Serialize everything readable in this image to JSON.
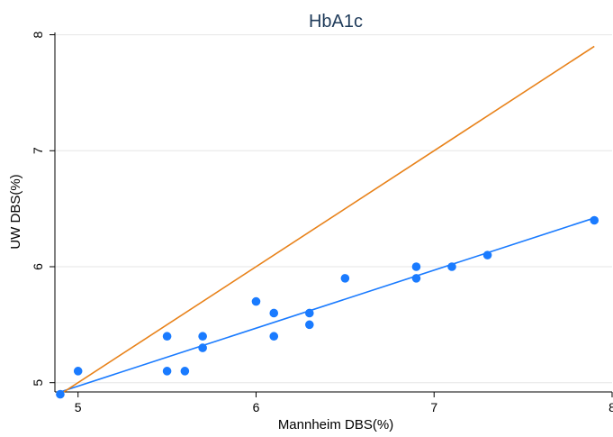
{
  "chart_data": {
    "type": "scatter",
    "title": "HbA1c",
    "xlabel": "Mannheim DBS(%)",
    "ylabel": "UW DBS(%)",
    "xlim": [
      4.87,
      8.0
    ],
    "ylim": [
      4.92,
      8.02
    ],
    "xticks": [
      5,
      6,
      7,
      8
    ],
    "yticks": [
      5,
      6,
      7,
      8
    ],
    "grid": true,
    "series": [
      {
        "type": "scatter",
        "color": "#1a7bff",
        "points": [
          [
            4.9,
            4.9
          ],
          [
            5.0,
            5.1
          ],
          [
            5.5,
            5.4
          ],
          [
            5.5,
            5.1
          ],
          [
            5.6,
            5.1
          ],
          [
            5.7,
            5.4
          ],
          [
            5.7,
            5.3
          ],
          [
            6.0,
            5.7
          ],
          [
            6.1,
            5.6
          ],
          [
            6.1,
            5.4
          ],
          [
            6.3,
            5.6
          ],
          [
            6.3,
            5.5
          ],
          [
            6.5,
            5.9
          ],
          [
            6.9,
            6.0
          ],
          [
            6.9,
            5.9
          ],
          [
            7.1,
            6.0
          ],
          [
            7.3,
            6.1
          ],
          [
            7.9,
            6.4
          ]
        ]
      },
      {
        "type": "line",
        "color": "#1a7bff",
        "points": [
          [
            4.9,
            4.92
          ],
          [
            7.9,
            6.42
          ]
        ]
      },
      {
        "type": "line",
        "color": "#e8821a",
        "points": [
          [
            4.9,
            4.9
          ],
          [
            7.9,
            7.9
          ]
        ]
      }
    ]
  }
}
